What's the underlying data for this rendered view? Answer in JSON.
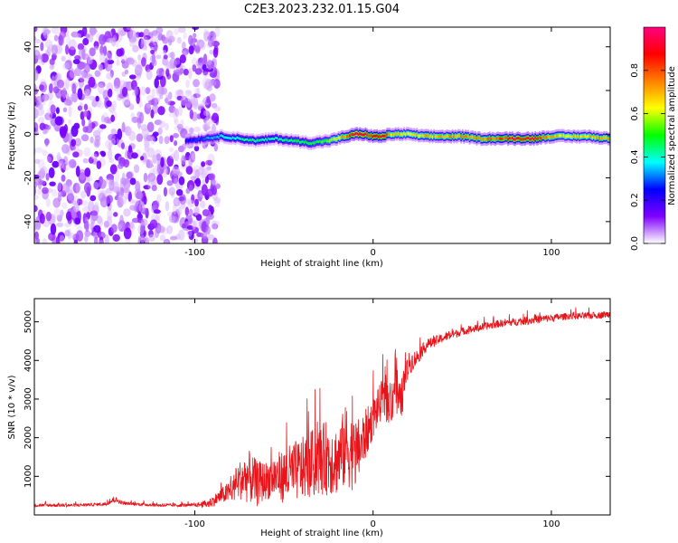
{
  "figure_title": "C2E3.2023.232.01.15.G04",
  "chart_data": [
    {
      "type": "heatmap",
      "title": "",
      "xlabel": "Height of straight line (km)",
      "ylabel": "Frequency (Hz)",
      "xlim": [
        -190,
        133
      ],
      "ylim": [
        -50,
        49
      ],
      "x_ticks": [
        -100,
        0,
        100
      ],
      "x_tick_labels": [
        "-100",
        "0",
        "100"
      ],
      "y_ticks": [
        -40,
        -20,
        0,
        20,
        40
      ],
      "y_tick_labels": [
        "-40",
        "-20",
        "0",
        "20",
        "40"
      ],
      "grid": false,
      "colorbar": {
        "label": "Normalized spectral amplitude",
        "range": [
          0,
          1
        ],
        "ticks": [
          0.0,
          0.2,
          0.4,
          0.6,
          0.8
        ],
        "tick_labels": [
          "0.0",
          "0.2",
          "0.4",
          "0.6",
          "0.8"
        ],
        "colors": [
          "#ffffff",
          "#7f00ff",
          "#0000ff",
          "#00ffff",
          "#00ff00",
          "#ffff00",
          "#ff8000",
          "#ff0000",
          "#ff0080"
        ]
      },
      "noise_region_x": [
        -190,
        -90
      ],
      "carrier_line": {
        "x": [
          -105,
          -95,
          -85,
          -75,
          -65,
          -55,
          -45,
          -35,
          -25,
          -15,
          -10,
          -5,
          0,
          5,
          10,
          20,
          30,
          40,
          50,
          60,
          70,
          80,
          90,
          100,
          110,
          120,
          133
        ],
        "frequency": [
          -3,
          -2,
          -1,
          -2,
          -3,
          -2,
          -3,
          -4,
          -3,
          -1,
          0,
          0,
          -1,
          -1,
          0,
          0,
          -1,
          -1,
          -1,
          -2,
          -2,
          -2,
          -2,
          -1,
          -1,
          -1,
          -2
        ],
        "amplitude": [
          0.25,
          0.3,
          0.38,
          0.42,
          0.45,
          0.42,
          0.48,
          0.5,
          0.55,
          0.75,
          0.95,
          0.9,
          0.85,
          0.95,
          0.7,
          0.65,
          0.7,
          0.72,
          0.75,
          0.75,
          0.8,
          0.9,
          0.92,
          0.7,
          0.68,
          0.7,
          0.75
        ]
      }
    },
    {
      "type": "line",
      "title": "",
      "xlabel": "Height of straight line (km)",
      "ylabel": "SNR (10 * v/v)",
      "xlim": [
        -190,
        133
      ],
      "ylim": [
        0,
        5600
      ],
      "x_ticks": [
        -100,
        0,
        100
      ],
      "x_tick_labels": [
        "-100",
        "0",
        "100"
      ],
      "y_ticks": [
        1000,
        2000,
        3000,
        4000,
        5000
      ],
      "y_tick_labels": [
        "1000",
        "2000",
        "3000",
        "4000",
        "5000"
      ],
      "grid": false,
      "color": "#e8141a",
      "series": [
        {
          "x": [
            -190,
            -170,
            -150,
            -145,
            -140,
            -120,
            -100,
            -92,
            -85,
            -80,
            -75,
            -70,
            -65,
            -60,
            -55,
            -50,
            -45,
            -40,
            -35,
            -30,
            -25,
            -20,
            -15,
            -10,
            -5,
            0,
            5,
            10,
            12,
            15,
            20,
            25,
            30,
            40,
            50,
            60,
            70,
            80,
            90,
            100,
            110,
            120,
            133
          ],
          "y": [
            250,
            250,
            280,
            400,
            300,
            250,
            250,
            300,
            500,
            600,
            900,
            1000,
            800,
            900,
            1000,
            1000,
            1100,
            1200,
            1300,
            1400,
            1500,
            1400,
            1800,
            1500,
            2000,
            2500,
            3000,
            2800,
            3500,
            2800,
            3900,
            4100,
            4400,
            4600,
            4750,
            4850,
            4950,
            5000,
            5050,
            5100,
            5150,
            5150,
            5200
          ],
          "noise": [
            40,
            40,
            40,
            80,
            40,
            40,
            40,
            120,
            200,
            300,
            500,
            700,
            600,
            500,
            600,
            700,
            800,
            800,
            900,
            900,
            1000,
            900,
            1100,
            900,
            700,
            500,
            500,
            500,
            900,
            600,
            300,
            200,
            150,
            120,
            100,
            100,
            100,
            100,
            110,
            100,
            90,
            90,
            90
          ]
        }
      ]
    }
  ]
}
